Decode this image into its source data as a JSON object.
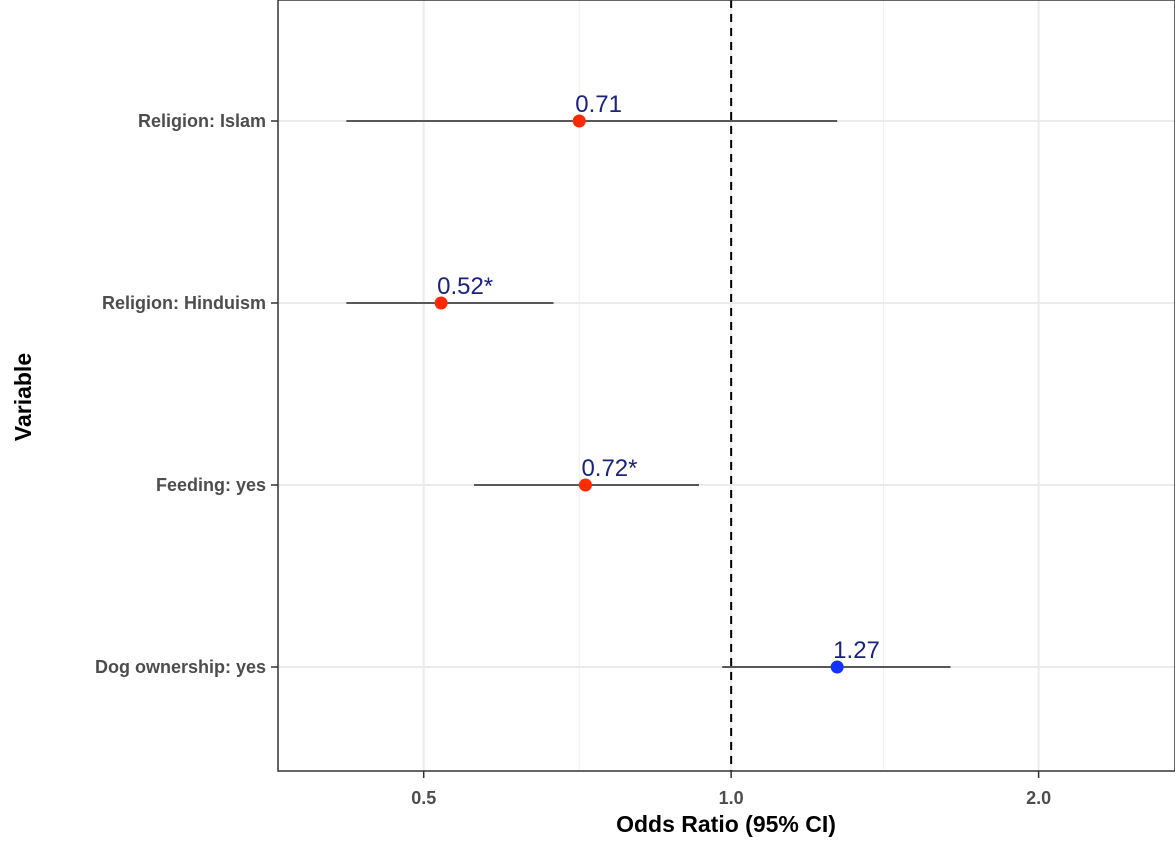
{
  "chart_data": {
    "type": "scatter",
    "subtype": "forest-plot",
    "xlabel": "Odds Ratio (95% CI)",
    "ylabel": "Variable",
    "x_scale": "log",
    "xlim": [
      0.36,
      2.72
    ],
    "x_ticks": [
      {
        "value": 0.5,
        "label": "0.5"
      },
      {
        "value": 1.0,
        "label": "1.0"
      },
      {
        "value": 2.0,
        "label": "2.0"
      }
    ],
    "minor_gridlines": [
      0.36,
      0.71,
      1.41
    ],
    "grid": true,
    "reference_line": {
      "value": 1.0,
      "style": "dashed"
    },
    "categories": [
      "Religion: Islam",
      "Religion: Hinduism",
      "Feeding: yes",
      "Dog ownership: yes"
    ],
    "points": [
      {
        "variable": "Religion: Islam",
        "or": 0.71,
        "ci_low": 0.42,
        "ci_high": 1.27,
        "label": "0.71",
        "color": "#ff2a00"
      },
      {
        "variable": "Religion: Hinduism",
        "or": 0.52,
        "ci_low": 0.42,
        "ci_high": 0.67,
        "label": "0.52*",
        "color": "#ff2a00"
      },
      {
        "variable": "Feeding: yes",
        "or": 0.72,
        "ci_low": 0.56,
        "ci_high": 0.93,
        "label": "0.72*",
        "color": "#ff2a00"
      },
      {
        "variable": "Dog ownership: yes",
        "or": 1.27,
        "ci_low": 0.98,
        "ci_high": 1.64,
        "label": "1.27",
        "color": "#1432ff"
      }
    ],
    "label_color": "#1a237e"
  }
}
